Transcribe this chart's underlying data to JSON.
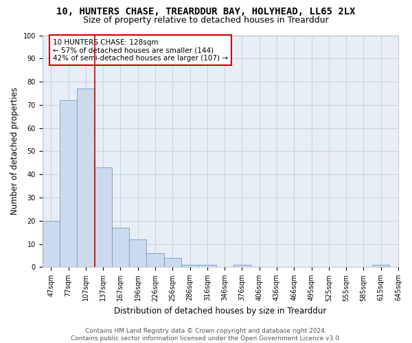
{
  "title": "10, HUNTERS CHASE, TREARDDUR BAY, HOLYHEAD, LL65 2LX",
  "subtitle": "Size of property relative to detached houses in Trearddur",
  "xlabel": "Distribution of detached houses by size in Trearddur",
  "ylabel": "Number of detached properties",
  "bar_values": [
    20,
    72,
    77,
    43,
    17,
    12,
    6,
    4,
    1,
    1,
    0,
    1,
    0,
    0,
    0,
    0,
    0,
    0,
    0,
    1
  ],
  "x_labels": [
    "47sqm",
    "77sqm",
    "107sqm",
    "137sqm",
    "167sqm",
    "196sqm",
    "226sqm",
    "256sqm",
    "286sqm",
    "316sqm",
    "346sqm",
    "376sqm",
    "406sqm",
    "436sqm",
    "466sqm",
    "495sqm",
    "525sqm",
    "555sqm",
    "585sqm",
    "615sqm",
    "645sqm"
  ],
  "bar_color": "#ccdaec",
  "bar_edge_color": "#6a9dc8",
  "grid_color": "#c8d0de",
  "bg_color": "#e8eef6",
  "vline_color": "#cc0000",
  "vline_pos": 2.5,
  "annotation_text": "10 HUNTERS CHASE: 128sqm\n← 57% of detached houses are smaller (144)\n42% of semi-detached houses are larger (107) →",
  "annotation_box_color": "white",
  "annotation_box_edge": "#cc0000",
  "ylim": [
    0,
    100
  ],
  "yticks": [
    0,
    10,
    20,
    30,
    40,
    50,
    60,
    70,
    80,
    90,
    100
  ],
  "footer": "Contains HM Land Registry data © Crown copyright and database right 2024.\nContains public sector information licensed under the Open Government Licence v3.0.",
  "title_fontsize": 10,
  "subtitle_fontsize": 9,
  "xlabel_fontsize": 8.5,
  "ylabel_fontsize": 8.5,
  "tick_fontsize": 7,
  "footer_fontsize": 6.5,
  "ann_fontsize": 7.5
}
